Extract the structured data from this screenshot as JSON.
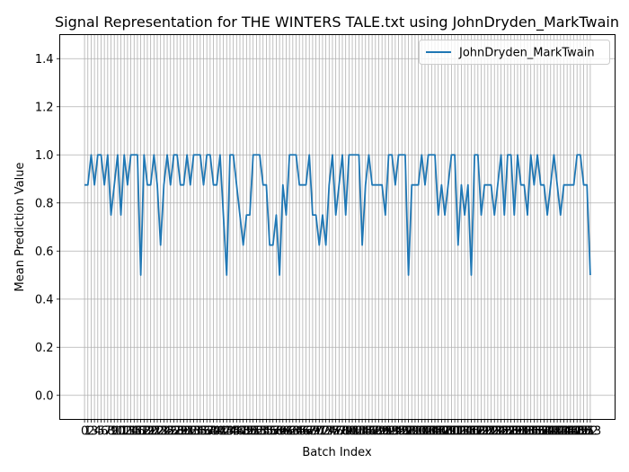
{
  "chart_data": {
    "type": "line",
    "title": "Signal Representation for THE WINTERS TALE.txt using JohnDryden_MarkTwain",
    "xlabel": "Batch Index",
    "ylabel": "Mean Prediction Value",
    "xlim": [
      -7.5,
      160.5
    ],
    "ylim": [
      -0.1,
      1.5
    ],
    "yticks": [
      0.0,
      0.2,
      0.4,
      0.6,
      0.8,
      1.0,
      1.2,
      1.4
    ],
    "ytick_labels": [
      "0.0",
      "0.2",
      "0.4",
      "0.6",
      "0.8",
      "1.0",
      "1.2",
      "1.4"
    ],
    "grid": true,
    "legend_position": "upper right",
    "series": [
      {
        "name": "JohnDryden_MarkTwain",
        "color": "#1f77b4",
        "values": [
          0.875,
          0.875,
          1.0,
          0.875,
          1.0,
          1.0,
          0.875,
          1.0,
          0.75,
          0.875,
          1.0,
          0.75,
          1.0,
          0.875,
          1.0,
          1.0,
          1.0,
          0.5,
          1.0,
          0.875,
          0.875,
          1.0,
          0.875,
          0.625,
          0.875,
          1.0,
          0.875,
          1.0,
          1.0,
          0.875,
          0.875,
          1.0,
          0.875,
          1.0,
          1.0,
          1.0,
          0.875,
          1.0,
          1.0,
          0.875,
          0.875,
          1.0,
          0.75,
          0.5,
          1.0,
          1.0,
          0.875,
          0.75,
          0.625,
          0.75,
          0.75,
          1.0,
          1.0,
          1.0,
          0.875,
          0.875,
          0.625,
          0.625,
          0.75,
          0.5,
          0.875,
          0.75,
          1.0,
          1.0,
          1.0,
          0.875,
          0.875,
          0.875,
          1.0,
          0.75,
          0.75,
          0.625,
          0.75,
          0.625,
          0.875,
          1.0,
          0.75,
          0.875,
          1.0,
          0.75,
          1.0,
          1.0,
          1.0,
          1.0,
          0.625,
          0.875,
          1.0,
          0.875,
          0.875,
          0.875,
          0.875,
          0.75,
          1.0,
          1.0,
          0.875,
          1.0,
          1.0,
          1.0,
          0.5,
          0.875,
          0.875,
          0.875,
          1.0,
          0.875,
          1.0,
          1.0,
          1.0,
          0.75,
          0.875,
          0.75,
          0.875,
          1.0,
          1.0,
          0.625,
          0.875,
          0.75,
          0.875,
          0.5,
          1.0,
          1.0,
          0.75,
          0.875,
          0.875,
          0.875,
          0.75,
          0.875,
          1.0,
          0.75,
          1.0,
          1.0,
          0.75,
          1.0,
          0.875,
          0.875,
          0.75,
          1.0,
          0.875,
          1.0,
          0.875,
          0.875,
          0.75,
          0.875,
          1.0,
          0.875,
          0.75,
          0.875,
          0.875,
          0.875,
          0.875,
          1.0,
          1.0,
          0.875,
          0.875,
          0.5
        ]
      }
    ],
    "xtick_labels": [
      "0",
      "1",
      "2",
      "3",
      "4",
      "5",
      "6",
      "7",
      "8",
      "9",
      "10",
      "11",
      "12",
      "13",
      "14",
      "15",
      "16",
      "17",
      "18",
      "19",
      "20",
      "21",
      "22",
      "23",
      "24",
      "25",
      "26",
      "27",
      "28",
      "29",
      "30",
      "31",
      "32",
      "33",
      "34",
      "35",
      "36",
      "37",
      "38",
      "39",
      "40",
      "41",
      "42",
      "43",
      "44",
      "45",
      "46",
      "47",
      "48",
      "49",
      "50",
      "51",
      "52",
      "53",
      "54",
      "55",
      "56",
      "57",
      "58",
      "59",
      "60",
      "61",
      "62",
      "63",
      "64",
      "65",
      "66",
      "67",
      "68",
      "69",
      "70",
      "71",
      "72",
      "73",
      "74",
      "75",
      "76",
      "77",
      "78",
      "79",
      "80",
      "81",
      "82",
      "83",
      "84",
      "85",
      "86",
      "87",
      "88",
      "89",
      "90",
      "91",
      "92",
      "93",
      "94",
      "95",
      "96",
      "97",
      "98",
      "99",
      "100",
      "101",
      "102",
      "103",
      "104",
      "105",
      "106",
      "107",
      "108",
      "109",
      "110",
      "111",
      "112",
      "113",
      "114",
      "115",
      "116",
      "117",
      "118",
      "119",
      "120",
      "121",
      "122",
      "123",
      "124",
      "125",
      "126",
      "127",
      "128",
      "129",
      "130",
      "131",
      "132",
      "133",
      "134",
      "135",
      "136",
      "137",
      "138",
      "139",
      "140",
      "141",
      "142",
      "143",
      "144",
      "145",
      "146",
      "147",
      "148",
      "149",
      "150",
      "151",
      "152",
      "153"
    ]
  }
}
